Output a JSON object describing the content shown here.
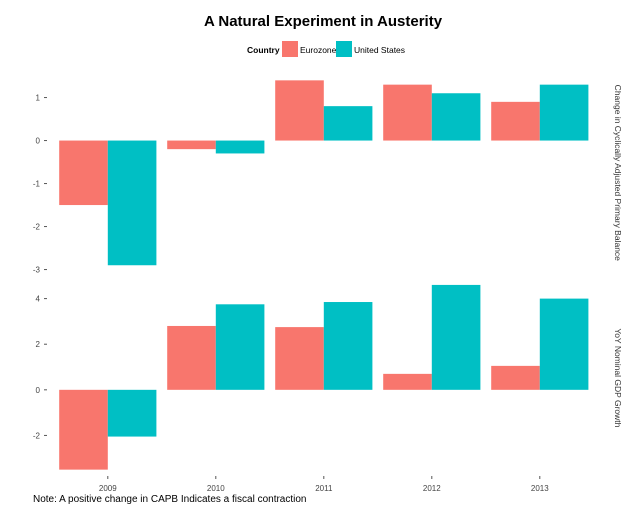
{
  "chart_data": {
    "type": "bar",
    "title": "A Natural Experiment in Austerity",
    "legend": {
      "title": "Country",
      "placement": "top",
      "entries": [
        "Eurozone",
        "United States"
      ]
    },
    "colors": {
      "Eurozone": "#F8766D",
      "United States": "#00BFC4"
    },
    "categories": [
      "2009",
      "2010",
      "2011",
      "2012",
      "2013"
    ],
    "note": "Note: A positive change in CAPB Indicates a fiscal contraction",
    "panels": [
      {
        "label": "Change in Cyclically Adjusted Primary Balance",
        "yticks": [
          1,
          0,
          -1,
          -2,
          -3
        ],
        "ylim": [
          -3.15,
          1.65
        ],
        "series": [
          {
            "name": "Eurozone",
            "values": [
              -1.5,
              -0.2,
              1.4,
              1.3,
              0.9
            ]
          },
          {
            "name": "United States",
            "values": [
              -2.9,
              -0.3,
              0.8,
              1.1,
              1.3
            ]
          }
        ]
      },
      {
        "label": "YoY Nominal GDP Growth",
        "yticks": [
          4,
          2,
          0,
          -2
        ],
        "ylim": [
          -3.7,
          4.75
        ],
        "series": [
          {
            "name": "Eurozone",
            "values": [
              -3.5,
              2.8,
              2.75,
              0.7,
              1.05
            ]
          },
          {
            "name": "United States",
            "values": [
              -2.05,
              3.75,
              3.85,
              4.6,
              4.0
            ]
          }
        ]
      }
    ]
  }
}
